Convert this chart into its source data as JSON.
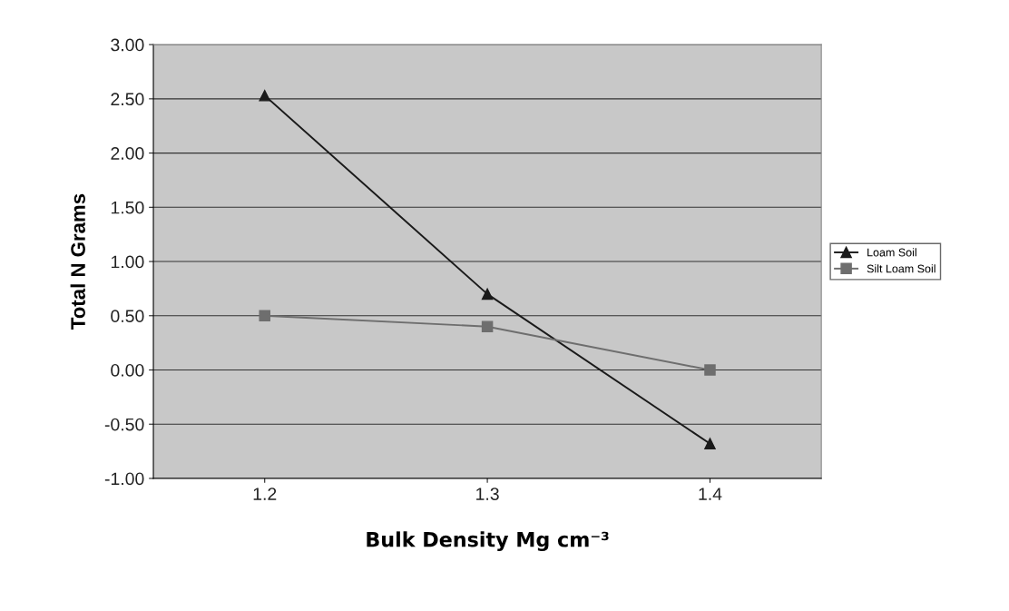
{
  "chart_data": {
    "type": "line",
    "xlabel": "Bulk Density Mg cm⁻³",
    "ylabel": "Total N Grams",
    "categories": [
      "1.2",
      "1.3",
      "1.4"
    ],
    "series": [
      {
        "name": "Loam Soil",
        "color": "#1a1a1a",
        "marker": "triangle",
        "values": [
          2.53,
          0.7,
          -0.68
        ]
      },
      {
        "name": "Silt Loam Soil",
        "color": "#6e6e6e",
        "marker": "square",
        "values": [
          0.5,
          0.4,
          0.0
        ]
      }
    ],
    "ylim": [
      -1.0,
      3.0
    ],
    "yticks": [
      {
        "value": -1.0,
        "label": "-1.00"
      },
      {
        "value": -0.5,
        "label": "-0.50"
      },
      {
        "value": 0.0,
        "label": "0.00"
      },
      {
        "value": 0.5,
        "label": "0.50"
      },
      {
        "value": 1.0,
        "label": "1.00"
      },
      {
        "value": 1.5,
        "label": "1.50"
      },
      {
        "value": 2.0,
        "label": "2.00"
      },
      {
        "value": 2.5,
        "label": "2.50"
      },
      {
        "value": 3.0,
        "label": "3.00"
      }
    ],
    "grid": "y",
    "legend": "right",
    "line_style": "solid"
  }
}
